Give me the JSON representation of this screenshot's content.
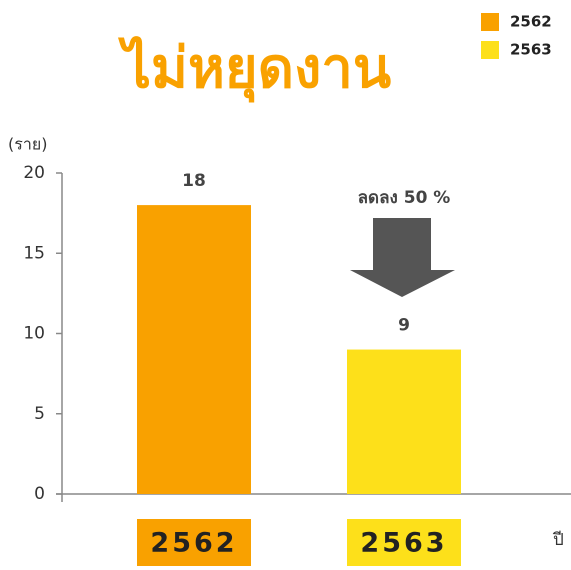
{
  "chart_data": {
    "type": "bar",
    "title": "ไม่หยุดงาน",
    "ylabel": "(ราย)",
    "xlabel": "ปี",
    "categories": [
      "2562",
      "2563"
    ],
    "series": [
      {
        "name": "2562",
        "color": "#f9a100",
        "values": [
          18,
          null
        ]
      },
      {
        "name": "2563",
        "color": "#fde01a",
        "values": [
          null,
          9
        ]
      }
    ],
    "annotation": "ลดลง 50 %",
    "ylim": [
      0,
      20
    ],
    "yticks": [
      0,
      5,
      10,
      15,
      20
    ],
    "legend": "upper right"
  }
}
